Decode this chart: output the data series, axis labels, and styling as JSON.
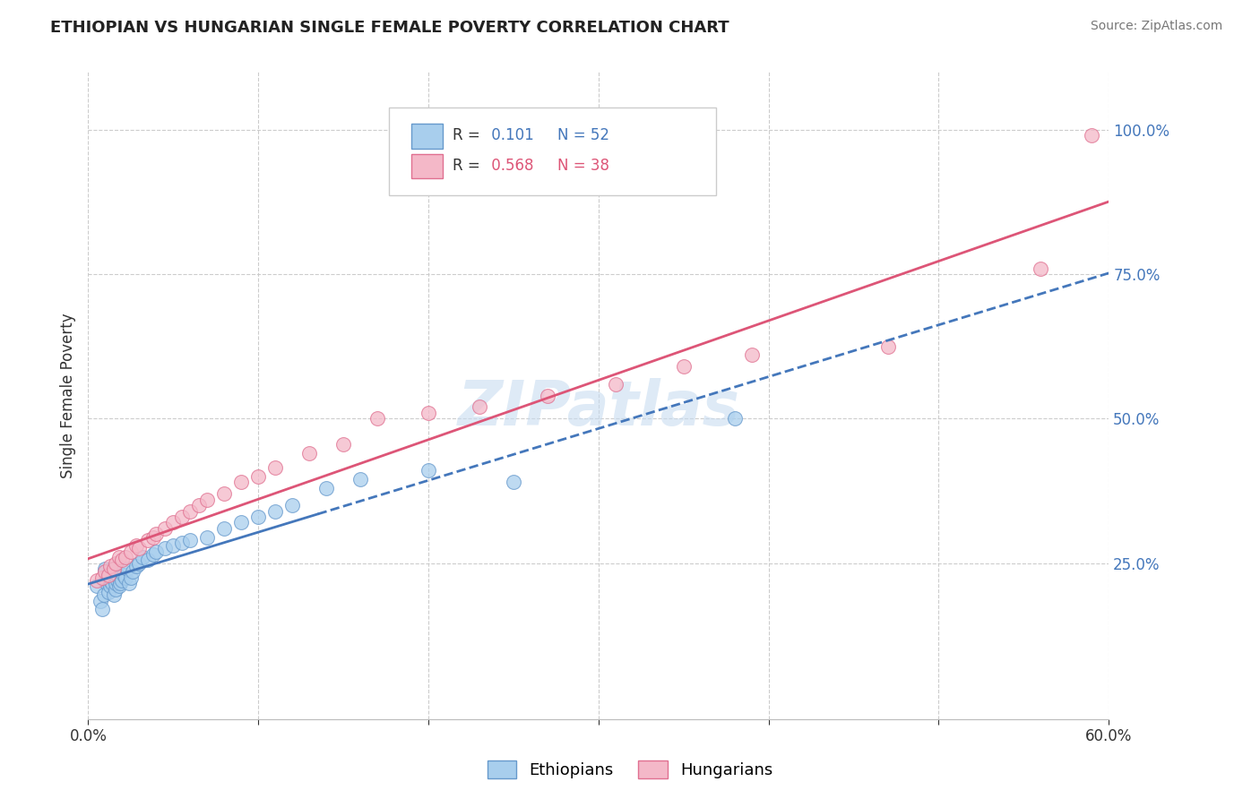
{
  "title": "ETHIOPIAN VS HUNGARIAN SINGLE FEMALE POVERTY CORRELATION CHART",
  "source": "Source: ZipAtlas.com",
  "ylabel": "Single Female Poverty",
  "xlim": [
    0.0,
    0.6
  ],
  "ylim": [
    -0.02,
    1.1
  ],
  "xticks": [
    0.0,
    0.1,
    0.2,
    0.3,
    0.4,
    0.5,
    0.6
  ],
  "xtick_labels": [
    "0.0%",
    "",
    "",
    "",
    "",
    "",
    "60.0%"
  ],
  "ytick_positions": [
    0.25,
    0.5,
    0.75,
    1.0
  ],
  "ytick_labels": [
    "25.0%",
    "50.0%",
    "75.0%",
    "100.0%"
  ],
  "ethiopian_color": "#A8CEED",
  "hungarian_color": "#F4B8C8",
  "eth_edge_color": "#6699CC",
  "hun_edge_color": "#E07090",
  "line_eth_color": "#4477BB",
  "line_hun_color": "#DD5577",
  "watermark_color": "#C8DCF0",
  "legend_r1": "R =  0.101",
  "legend_n1": "N = 52",
  "legend_r2": "R =  0.568",
  "legend_n2": "N = 38",
  "ethiopian_x": [
    0.005,
    0.007,
    0.008,
    0.009,
    0.01,
    0.01,
    0.01,
    0.011,
    0.011,
    0.012,
    0.012,
    0.013,
    0.013,
    0.014,
    0.014,
    0.015,
    0.015,
    0.016,
    0.016,
    0.017,
    0.017,
    0.018,
    0.018,
    0.019,
    0.02,
    0.021,
    0.022,
    0.023,
    0.024,
    0.025,
    0.026,
    0.028,
    0.03,
    0.032,
    0.035,
    0.038,
    0.04,
    0.045,
    0.05,
    0.055,
    0.06,
    0.07,
    0.08,
    0.09,
    0.1,
    0.11,
    0.12,
    0.14,
    0.16,
    0.2,
    0.25,
    0.38
  ],
  "ethiopian_y": [
    0.21,
    0.185,
    0.17,
    0.195,
    0.22,
    0.235,
    0.24,
    0.215,
    0.225,
    0.2,
    0.23,
    0.21,
    0.22,
    0.24,
    0.215,
    0.225,
    0.195,
    0.205,
    0.215,
    0.22,
    0.23,
    0.21,
    0.225,
    0.215,
    0.22,
    0.23,
    0.225,
    0.24,
    0.215,
    0.225,
    0.235,
    0.245,
    0.25,
    0.26,
    0.255,
    0.265,
    0.27,
    0.275,
    0.28,
    0.285,
    0.29,
    0.295,
    0.31,
    0.32,
    0.33,
    0.34,
    0.35,
    0.38,
    0.395,
    0.41,
    0.39,
    0.5
  ],
  "hungarian_x": [
    0.005,
    0.008,
    0.01,
    0.012,
    0.013,
    0.015,
    0.016,
    0.018,
    0.02,
    0.022,
    0.025,
    0.028,
    0.03,
    0.035,
    0.038,
    0.04,
    0.045,
    0.05,
    0.055,
    0.06,
    0.065,
    0.07,
    0.08,
    0.09,
    0.1,
    0.11,
    0.13,
    0.15,
    0.17,
    0.2,
    0.23,
    0.27,
    0.31,
    0.35,
    0.39,
    0.47,
    0.56,
    0.59
  ],
  "hungarian_y": [
    0.22,
    0.225,
    0.235,
    0.23,
    0.245,
    0.24,
    0.25,
    0.26,
    0.255,
    0.26,
    0.27,
    0.28,
    0.275,
    0.29,
    0.295,
    0.3,
    0.31,
    0.32,
    0.33,
    0.34,
    0.35,
    0.36,
    0.37,
    0.39,
    0.4,
    0.415,
    0.44,
    0.455,
    0.5,
    0.51,
    0.52,
    0.54,
    0.56,
    0.59,
    0.61,
    0.625,
    0.76,
    0.99
  ]
}
